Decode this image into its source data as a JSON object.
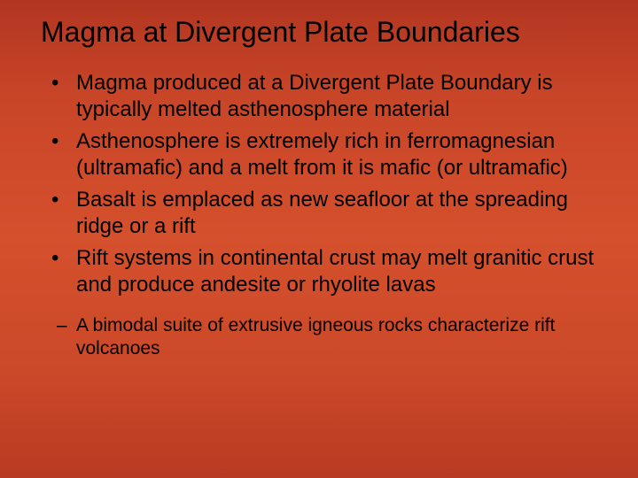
{
  "slide": {
    "title": "Magma at Divergent Plate Boundaries",
    "bullets": [
      "Magma produced at a Divergent Plate Boundary is typically melted asthenosphere material",
      "Asthenosphere is extremely rich in ferromagnesian (ultramafic) and a melt from it is mafic (or ultramafic)",
      "Basalt is emplaced as new seafloor at the spreading ridge or a rift",
      "Rift systems in continental crust may melt granitic crust and produce andesite or rhyolite lavas"
    ],
    "sub_bullets": [
      "A bimodal suite of extrusive igneous rocks characterize rift volcanoes"
    ],
    "style": {
      "background_gradient_top": "#b33621",
      "background_gradient_mid": "#d5502c",
      "background_gradient_bottom": "#b83a22",
      "title_fontsize": 32,
      "bullet_fontsize": 24,
      "sub_bullet_fontsize": 21,
      "text_color": "#000000",
      "font_family": "Arial"
    }
  }
}
